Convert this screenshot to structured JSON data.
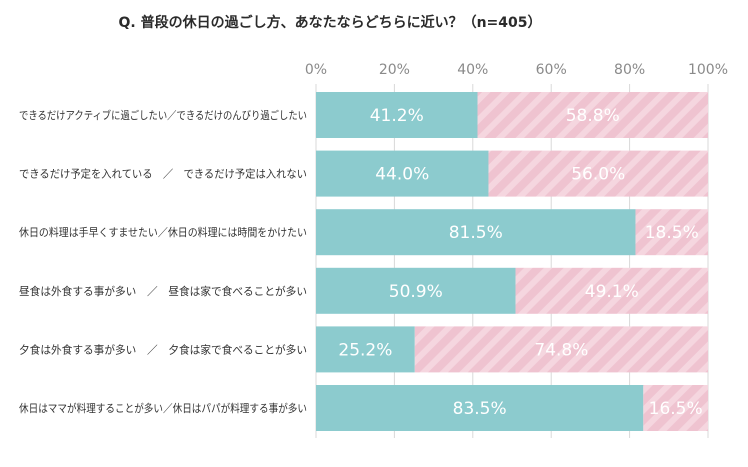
{
  "chart_data": {
    "type": "bar",
    "orientation": "horizontal",
    "stacked": true,
    "title": "Q. 普段の休日の過ごし方、あなたならどちらに近い？（n=405）",
    "xlim": [
      0,
      100
    ],
    "x_ticks": [
      "0%",
      "20%",
      "40%",
      "60%",
      "80%",
      "100%"
    ],
    "grid": true,
    "categories": [
      "できるだけアクティブに過ごしたい／できるだけのんびり過ごしたい",
      "できるだけ予定を入れている　／　できるだけ予定は入れない",
      "休日の料理は手早くすませたい／休日の料理には時間をかけたい",
      "昼食は外食する事が多い　／　昼食は家で食べることが多い",
      "夕食は外食する事が多い　／　夕食は家で食べることが多い",
      "休日はママが料理することが多い／休日はパパが料理する事が多い"
    ],
    "series": [
      {
        "values": [
          41.2,
          44.0,
          81.5,
          50.9,
          25.2,
          83.5
        ],
        "labels": [
          "41.2%",
          "44.0%",
          "81.5%",
          "50.9%",
          "25.2%",
          "83.5%"
        ],
        "color": "#8ccbce"
      },
      {
        "values": [
          58.8,
          56.0,
          18.5,
          49.1,
          74.8,
          16.5
        ],
        "labels": [
          "58.8%",
          "56.0%",
          "18.5%",
          "49.1%",
          "74.8%",
          "16.5%"
        ],
        "color": "#efc3d0"
      }
    ]
  }
}
